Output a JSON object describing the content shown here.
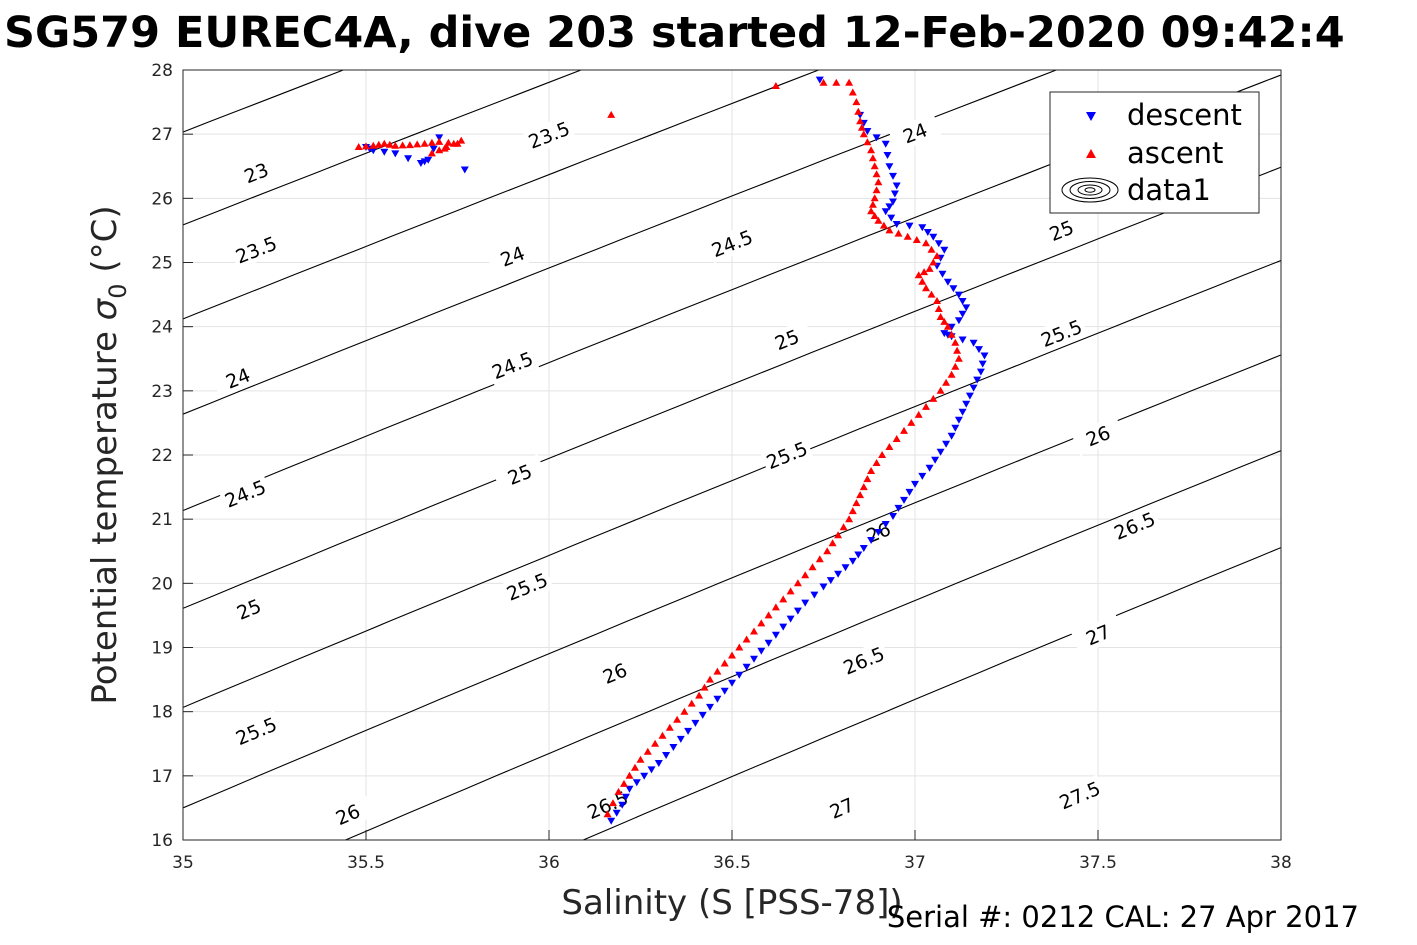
{
  "chart_data": {
    "type": "scatter",
    "title": "SG579 EUREC4A, dive 203 started 12-Feb-2020 09:42:4",
    "xlabel": "Salinity (S [PSS-78])",
    "ylabel_main": "Potential temperature ",
    "ylabel_sym": "σ",
    "ylabel_sub": "0",
    "ylabel_unit": " (°C)",
    "footer": "Serial #: 0212  CAL: 27 Apr 2017",
    "xlim": [
      35,
      38
    ],
    "ylim": [
      16,
      28
    ],
    "x_ticks": [
      35,
      35.5,
      36,
      36.5,
      37,
      37.5,
      38
    ],
    "x_tick_labels": [
      "35",
      "35.5",
      "36",
      "36.5",
      "37",
      "37.5",
      "38"
    ],
    "y_ticks": [
      16,
      17,
      18,
      19,
      20,
      21,
      22,
      23,
      24,
      25,
      26,
      27,
      28
    ],
    "y_tick_labels": [
      "16",
      "17",
      "18",
      "19",
      "20",
      "21",
      "22",
      "23",
      "24",
      "25",
      "26",
      "27",
      "28"
    ],
    "grid": true,
    "legend_position": "top-right",
    "legend": [
      "descent",
      "ascent",
      "data1"
    ],
    "colors": {
      "descent": "#0000ff",
      "ascent": "#ff0000",
      "contour": "#000000",
      "grid": "#e3e3e3"
    },
    "density_contours": [
      23,
      23.5,
      24,
      24.5,
      25,
      25.5,
      26,
      26.5,
      27,
      27.5
    ],
    "contour_labels": [
      {
        "text": "23",
        "s": 35.2,
        "t": 26.4
      },
      {
        "text": "23.5",
        "s": 36.0,
        "t": 26.99
      },
      {
        "text": "24",
        "s": 37.0,
        "t": 27.02
      },
      {
        "text": "23.5",
        "s": 35.2,
        "t": 25.2
      },
      {
        "text": "24",
        "s": 35.9,
        "t": 25.1
      },
      {
        "text": "24.5",
        "s": 36.5,
        "t": 25.3
      },
      {
        "text": "25",
        "s": 37.4,
        "t": 25.5
      },
      {
        "text": "24",
        "s": 35.15,
        "t": 23.2
      },
      {
        "text": "24.5",
        "s": 35.9,
        "t": 23.4
      },
      {
        "text": "25",
        "s": 36.65,
        "t": 23.8
      },
      {
        "text": "25.5",
        "s": 37.4,
        "t": 23.9
      },
      {
        "text": "24.5",
        "s": 35.17,
        "t": 21.4
      },
      {
        "text": "25",
        "s": 35.92,
        "t": 21.7
      },
      {
        "text": "25.5",
        "s": 36.65,
        "t": 22.0
      },
      {
        "text": "26",
        "s": 37.5,
        "t": 22.3
      },
      {
        "text": "25",
        "s": 35.18,
        "t": 19.6
      },
      {
        "text": "25.5",
        "s": 35.94,
        "t": 19.95
      },
      {
        "text": "26",
        "s": 36.9,
        "t": 20.8
      },
      {
        "text": "26.5",
        "s": 37.6,
        "t": 20.9
      },
      {
        "text": "25.5",
        "s": 35.2,
        "t": 17.7
      },
      {
        "text": "26",
        "s": 36.18,
        "t": 18.6
      },
      {
        "text": "26.5",
        "s": 36.86,
        "t": 18.8
      },
      {
        "text": "27",
        "s": 37.5,
        "t": 19.2
      },
      {
        "text": "26",
        "s": 35.45,
        "t": 16.4
      },
      {
        "text": "26.5",
        "s": 36.16,
        "t": 16.55
      },
      {
        "text": "27",
        "s": 36.8,
        "t": 16.5
      },
      {
        "text": "27.5",
        "s": 37.45,
        "t": 16.7
      }
    ],
    "series": [
      {
        "name": "descent",
        "marker": "triangle-down",
        "x": [
          35.5,
          35.52,
          35.58,
          35.65,
          35.67,
          35.7,
          35.77,
          36.74,
          36.85,
          36.87,
          36.92,
          36.93,
          36.95,
          36.94,
          36.92,
          36.95,
          37.02,
          37.05,
          37.08,
          37.06,
          37.09,
          37.12,
          37.14,
          37.12,
          37.08,
          37.1,
          37.16,
          37.19,
          37.18,
          37.16,
          37.14,
          37.12,
          37.1,
          37.07,
          37.04,
          37.0,
          36.97,
          36.94,
          36.9,
          36.86,
          36.83,
          36.79,
          36.75,
          36.7,
          36.66,
          36.62,
          36.58,
          36.54,
          36.5,
          36.46,
          36.42,
          36.38,
          36.34,
          36.3,
          36.26,
          36.22,
          36.2,
          36.17
        ],
        "y": [
          26.8,
          26.75,
          26.7,
          26.55,
          26.6,
          26.95,
          26.45,
          27.85,
          27.3,
          27.05,
          26.85,
          26.5,
          26.2,
          25.95,
          25.8,
          25.6,
          25.55,
          25.4,
          25.2,
          24.95,
          24.7,
          24.5,
          24.3,
          24.1,
          23.9,
          23.85,
          23.75,
          23.55,
          23.3,
          23.05,
          22.8,
          22.55,
          22.3,
          22.05,
          21.8,
          21.55,
          21.3,
          21.05,
          20.8,
          20.55,
          20.35,
          20.15,
          19.95,
          19.7,
          19.45,
          19.2,
          18.95,
          18.7,
          18.45,
          18.2,
          17.95,
          17.7,
          17.45,
          17.2,
          17.0,
          16.8,
          16.55,
          16.3
        ]
      },
      {
        "name": "ascent",
        "marker": "triangle-up",
        "x": [
          35.48,
          35.52,
          35.55,
          35.58,
          35.62,
          35.66,
          35.7,
          35.75,
          35.68,
          35.72,
          35.76,
          36.17,
          36.62,
          36.75,
          36.82,
          36.84,
          36.85,
          36.86,
          36.88,
          36.89,
          36.9,
          36.89,
          36.88,
          36.9,
          36.93,
          36.98,
          37.03,
          37.06,
          37.04,
          37.01,
          37.03,
          37.06,
          37.07,
          37.09,
          37.11,
          37.12,
          37.1,
          37.07,
          37.03,
          36.99,
          36.95,
          36.91,
          36.88,
          36.86,
          36.84,
          36.82,
          36.79,
          36.76,
          36.72,
          36.68,
          36.64,
          36.6,
          36.56,
          36.52,
          36.48,
          36.44,
          36.41,
          36.37,
          36.33,
          36.29,
          36.25,
          36.22,
          36.19,
          36.16
        ],
        "y": [
          26.8,
          26.82,
          26.85,
          26.82,
          26.83,
          26.85,
          26.88,
          26.85,
          26.7,
          26.8,
          26.9,
          27.3,
          27.75,
          27.8,
          27.8,
          27.5,
          27.2,
          27.0,
          26.75,
          26.5,
          26.25,
          26.0,
          25.8,
          25.65,
          25.5,
          25.4,
          25.3,
          25.1,
          24.9,
          24.8,
          24.6,
          24.4,
          24.15,
          24.0,
          23.75,
          23.5,
          23.25,
          23.0,
          22.75,
          22.5,
          22.25,
          22.0,
          21.75,
          21.5,
          21.25,
          21.0,
          20.75,
          20.5,
          20.25,
          20.0,
          19.75,
          19.5,
          19.25,
          19.0,
          18.75,
          18.5,
          18.25,
          18.0,
          17.75,
          17.5,
          17.25,
          17.0,
          16.75,
          16.4
        ]
      }
    ]
  }
}
